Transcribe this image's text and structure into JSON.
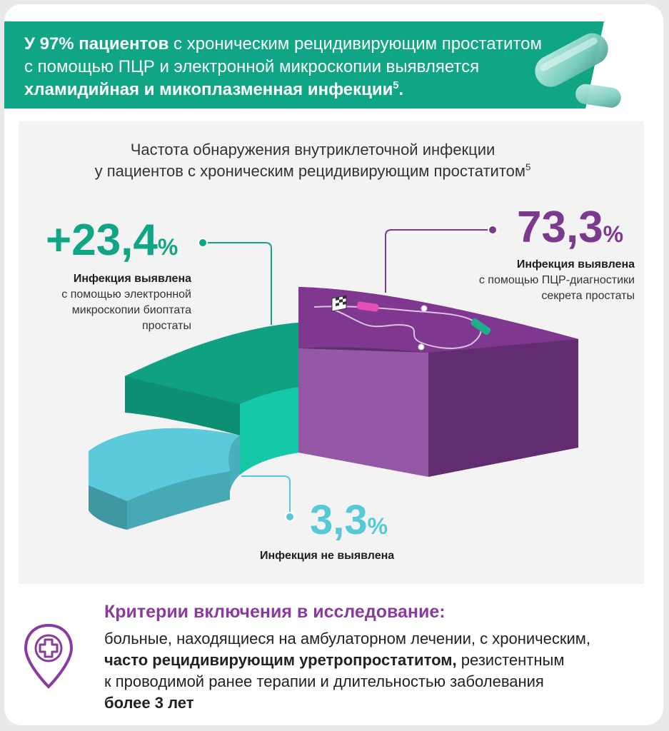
{
  "banner": {
    "line1_bold": "У 97% пациентов",
    "line1_rest": " с хроническим рецидивирующим простатитом",
    "line2": "с помощью ПЦР и электронной микроскопии выявляется",
    "line3_bold": "хламидийная и микоплазменная инфекции",
    "line3_sup": "5",
    "line3_end": "."
  },
  "chart_data": {
    "type": "pie",
    "title_line1": "Частота обнаружения внутриклеточной инфекции",
    "title_line2": "у пациентов с хроническим рецидивирующим простатитом",
    "title_sup": "5",
    "series": [
      {
        "value": "73,3",
        "value_num": 73.3,
        "unit": "%",
        "caption_bold": "Инфекция выявлена",
        "caption_lines": [
          "с помощью ПЦР-диагностики",
          "секрета простаты"
        ],
        "color": "#7b3a8e"
      },
      {
        "value": "+23,4",
        "value_num": 23.4,
        "unit": "%",
        "caption_bold": "Инфекция выявлена",
        "caption_lines": [
          "с помощью электронной",
          "микроскопии биоптата",
          "простаты"
        ],
        "color": "#10a585"
      },
      {
        "value": "3,3",
        "value_num": 3.3,
        "unit": "%",
        "caption_bold": "Инфекция не выявлена",
        "caption_lines": [],
        "color": "#57c8d8"
      }
    ]
  },
  "criteria": {
    "title": "Критерии включения в исследование:",
    "line1": "больные, находящиеся на амбулаторном лечении, с хроническим,",
    "line2_bold": "часто рецидивирующим уретропростатитом,",
    "line2_rest": " резистентным",
    "line3": "к проводимой ранее терапии и длительностью заболевания",
    "line4_bold": "более 3 лет",
    "icon": "medical-cross-pin-icon"
  },
  "colors": {
    "banner": "#10a585",
    "accent_purple": "#8a3c9e",
    "teal_value": "#10a585",
    "cyan_value": "#57c8d8"
  }
}
